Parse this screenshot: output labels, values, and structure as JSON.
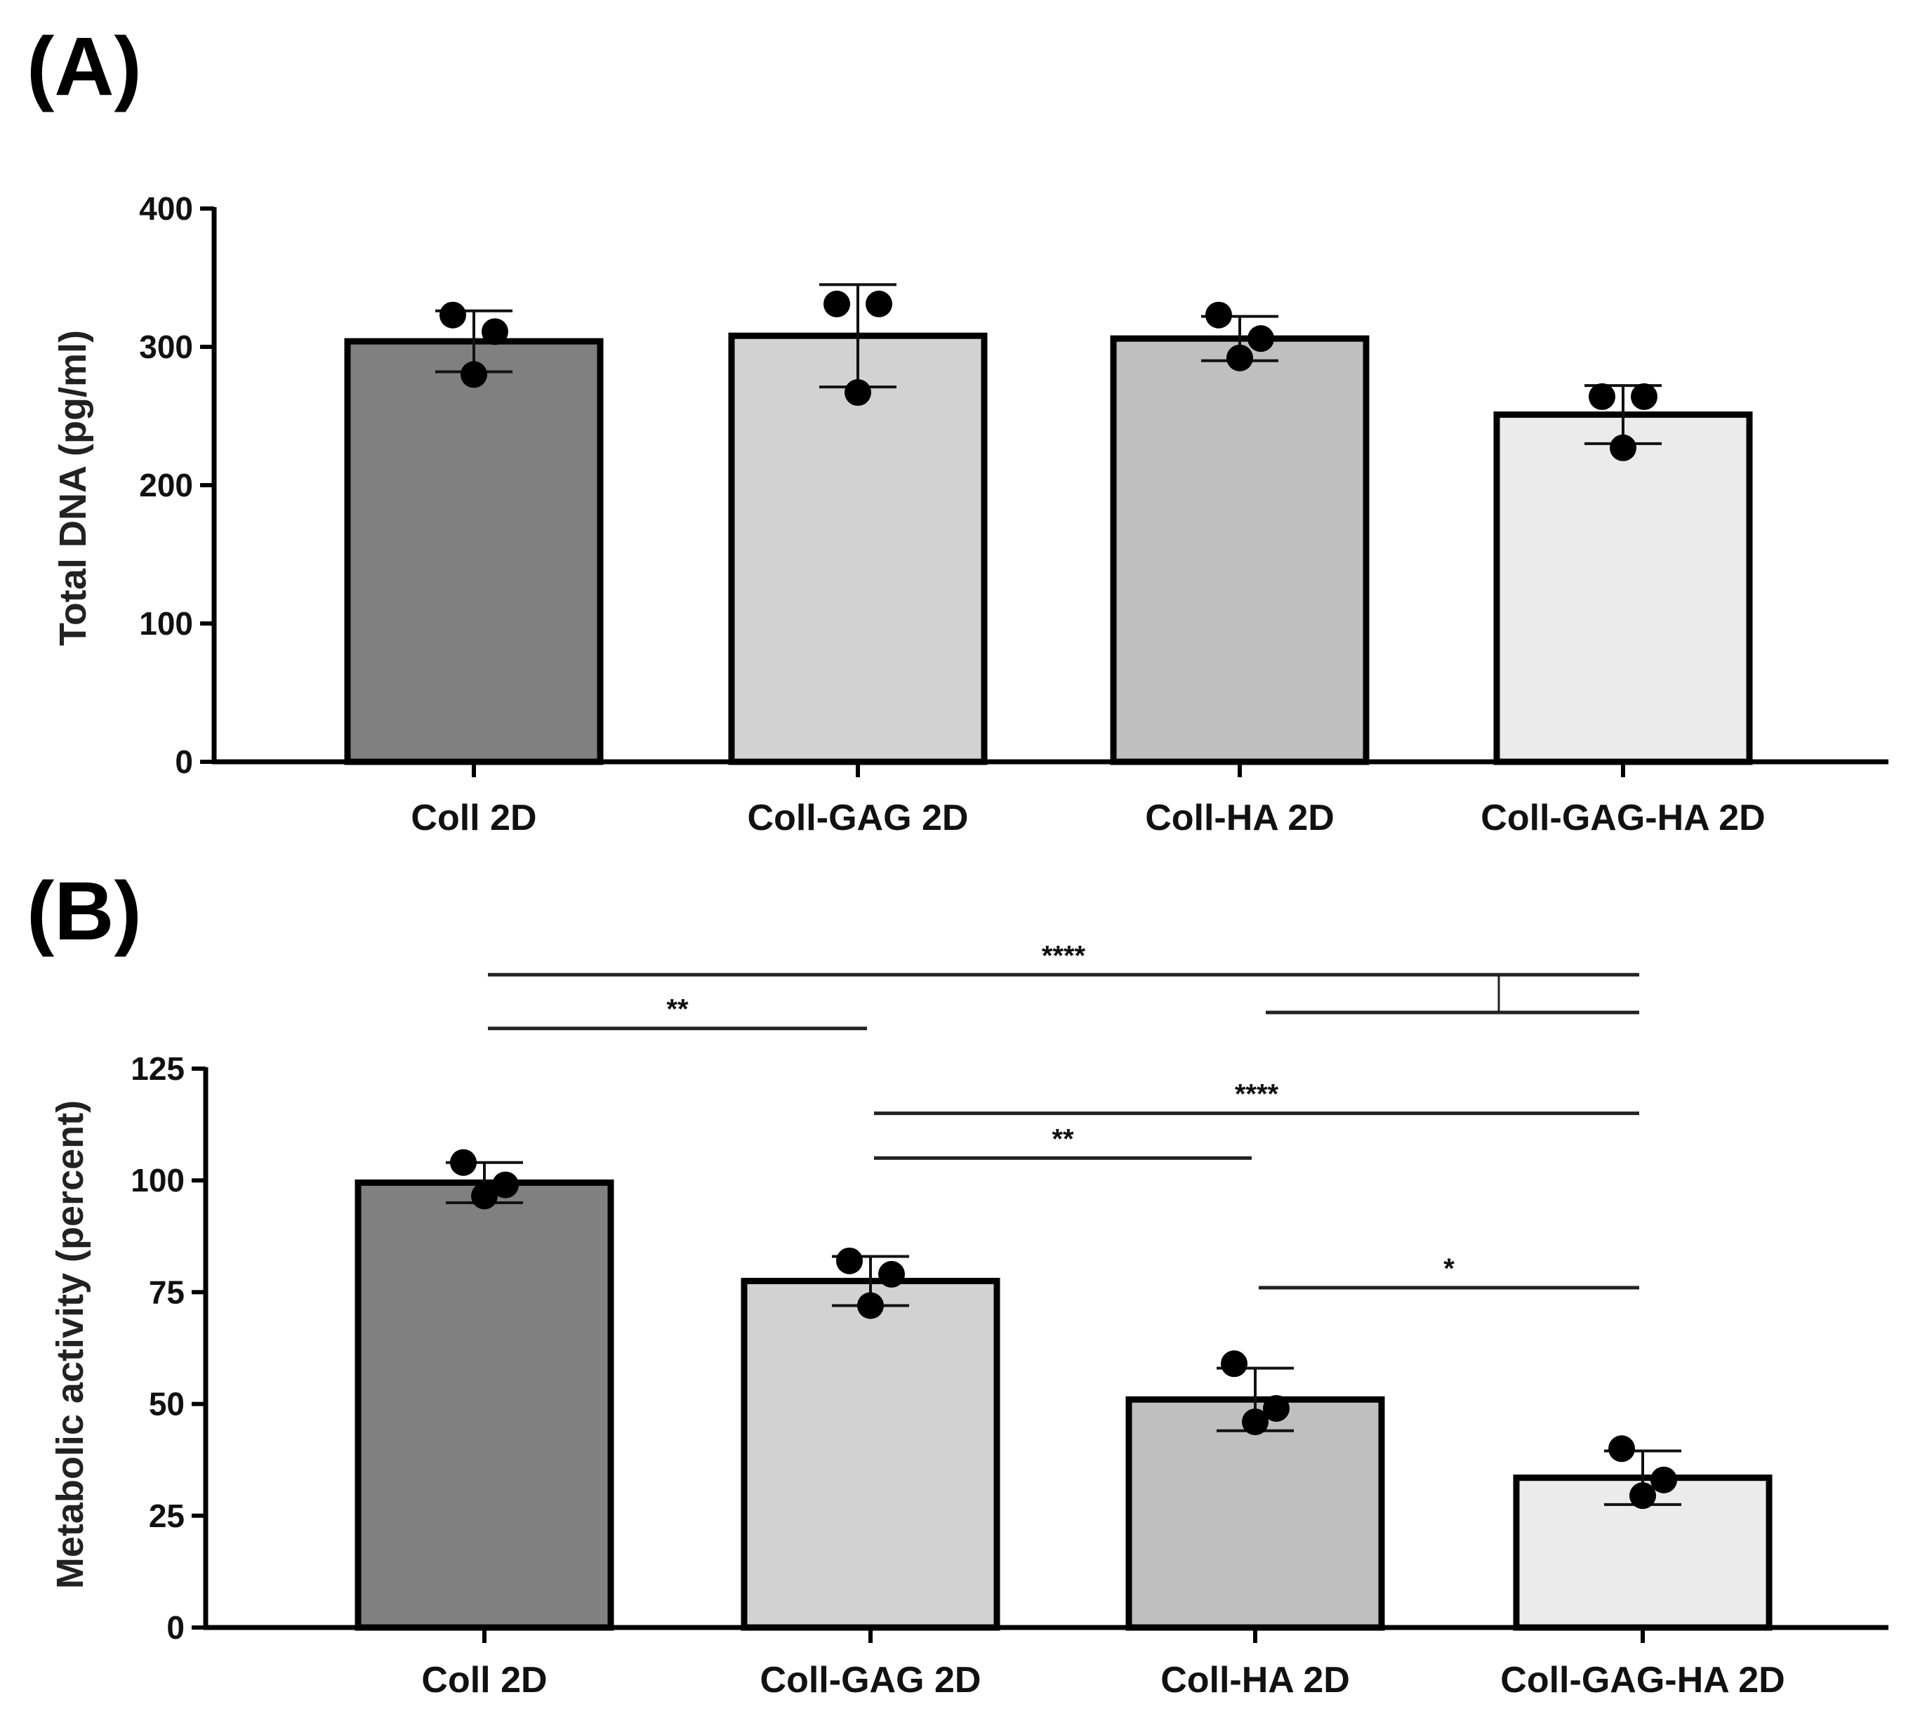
{
  "chart_data": [
    {
      "panel": "(A)",
      "type": "bar",
      "ylabel": "Total DNA (pg/ml)",
      "xlabel": "",
      "ylim": [
        0,
        400
      ],
      "yticks": [
        0,
        100,
        200,
        300,
        400
      ],
      "ytick_labels": [
        "0",
        "100",
        "200",
        "300",
        "400"
      ],
      "categories": [
        "Coll 2D",
        "Coll-GAG 2D",
        "Coll-HA 2D",
        "Coll-GAG-HA 2D"
      ],
      "values": [
        304,
        308,
        306,
        251
      ],
      "error_bars": [
        22,
        37,
        16,
        21
      ],
      "points": [
        [
          323,
          311,
          280
        ],
        [
          331,
          331,
          267
        ],
        [
          323,
          306,
          292
        ],
        [
          264,
          264,
          227
        ]
      ],
      "colors": [
        "#808080",
        "#d2d2d2",
        "#bfbfbf",
        "#ebebeb"
      ],
      "significance": []
    },
    {
      "panel": "(B)",
      "type": "bar",
      "ylabel": "Metabolic activity (percent)",
      "xlabel": "",
      "ylim": [
        0,
        125
      ],
      "yticks": [
        0,
        25,
        50,
        75,
        100,
        125
      ],
      "ytick_labels": [
        "0",
        "25",
        "50",
        "75",
        "100",
        "125"
      ],
      "categories": [
        "Coll 2D",
        "Coll-GAG 2D",
        "Coll-HA 2D",
        "Coll-GAG-HA 2D"
      ],
      "values": [
        99.5,
        77.5,
        51,
        33.5
      ],
      "error_bars": [
        4.5,
        5.5,
        7,
        6
      ],
      "points": [
        [
          104,
          99,
          96.5
        ],
        [
          82,
          79,
          72
        ],
        [
          59,
          49,
          46
        ],
        [
          40,
          33,
          29.5
        ]
      ],
      "colors": [
        "#808080",
        "#d2d2d2",
        "#bfbfbf",
        "#ebebeb"
      ],
      "significance": [
        {
          "from": 0,
          "to": 3,
          "label": "****",
          "y": 146
        },
        {
          "from": 0,
          "to": 1,
          "label": "**",
          "y": 134
        },
        {
          "from": 1,
          "to": 3,
          "label": "****",
          "y": 115
        },
        {
          "from": 1,
          "to": 2,
          "label": "**",
          "y": 105
        },
        {
          "from": 2,
          "to": 3,
          "label": "*",
          "y": 76
        }
      ]
    }
  ]
}
